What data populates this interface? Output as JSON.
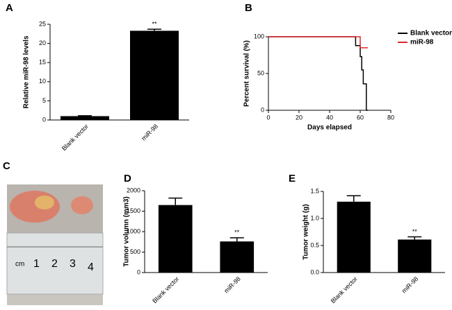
{
  "chart_data": [
    {
      "type": "bar",
      "panel_label": "A",
      "ylabel": "Relative miR-98 levels",
      "categories": [
        "Blank vector",
        "miR-98"
      ],
      "values": [
        1,
        23.3
      ],
      "errors": [
        0.1,
        0.4
      ],
      "color": "#000000",
      "ylim": [
        0,
        25
      ],
      "yticks": [
        0,
        5,
        10,
        15,
        20,
        25
      ],
      "annotation": "**"
    },
    {
      "type": "line",
      "panel_label": "B",
      "xlabel": "Days elapsed",
      "ylabel": "Percent survival (%)",
      "step": true,
      "series": [
        {
          "name": "Blank vector",
          "color": "#000000",
          "x": [
            0,
            57,
            60,
            61,
            62,
            64,
            65
          ],
          "values": [
            100,
            88,
            73,
            55,
            36,
            0,
            0
          ]
        },
        {
          "name": "miR-98",
          "color": "#e0262b",
          "x": [
            0,
            60,
            65
          ],
          "values": [
            100,
            85,
            85
          ]
        }
      ],
      "xlim": [
        0,
        80
      ],
      "xticks": [
        0,
        20,
        40,
        60,
        80
      ],
      "ylim": [
        0,
        100
      ],
      "yticks": [
        0,
        50,
        100
      ],
      "legend": "upper right"
    },
    {
      "type": "bar",
      "panel_label": "D",
      "ylabel": "Tumor volumn (mm3)",
      "categories": [
        "Blank vector",
        "miR-98"
      ],
      "values": [
        1650,
        760
      ],
      "errors": [
        170,
        90
      ],
      "color": "#000000",
      "ylim": [
        0,
        2000
      ],
      "yticks": [
        0,
        500,
        1000,
        1500,
        2000
      ],
      "annotation": "**"
    },
    {
      "type": "bar",
      "panel_label": "E",
      "ylabel": "Tumor weight (g)",
      "categories": [
        "Blank vector",
        "miR-98"
      ],
      "values": [
        1.31,
        0.61
      ],
      "errors": [
        0.11,
        0.05
      ],
      "color": "#000000",
      "ylim": [
        0,
        1.5
      ],
      "yticks": [
        {
          "value": 0,
          "label": "0.0"
        },
        0.5,
        {
          "value": 1,
          "label": "1.0"
        },
        1.5
      ],
      "annotation": "**"
    }
  ],
  "photo": {
    "panel_label": "C",
    "ruler_labels": [
      "cm",
      "1",
      "2",
      "3",
      "4"
    ]
  }
}
